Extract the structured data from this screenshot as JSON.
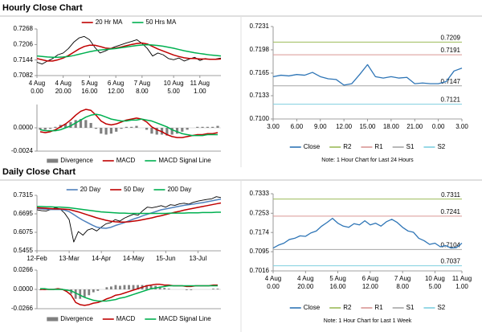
{
  "sections": [
    "Hourly Close Chart",
    "Daily Close Chart"
  ],
  "chart_data": [
    {
      "type": "line",
      "legend": "top",
      "categories": [
        "4 Aug",
        null,
        null,
        null,
        null,
        "4 Aug",
        null,
        null,
        null,
        null,
        "5 Aug",
        null,
        null,
        null,
        null,
        "6 Aug",
        null,
        null,
        null,
        null,
        "7 Aug",
        null,
        null,
        null,
        null,
        null,
        "10 Aug",
        null,
        null,
        null,
        null,
        "11 Aug",
        null,
        null,
        null,
        null
      ],
      "category_times": [
        "0.00",
        null,
        null,
        null,
        null,
        "20.00",
        null,
        null,
        null,
        null,
        "16.00",
        null,
        null,
        null,
        null,
        "12.00",
        null,
        null,
        null,
        null,
        "8.00",
        null,
        null,
        null,
        null,
        null,
        "5.00",
        null,
        null,
        null,
        null,
        "1.00",
        null,
        null,
        null,
        null
      ],
      "color": "#000000",
      "values": [
        0.7135,
        0.7128,
        0.714,
        0.715,
        0.7165,
        0.7172,
        0.719,
        0.7215,
        0.7232,
        0.7238,
        0.7225,
        0.7195,
        0.7172,
        0.718,
        0.719,
        0.7198,
        0.7205,
        0.7212,
        0.7218,
        0.7225,
        0.721,
        0.719,
        0.716,
        0.7172,
        0.7165,
        0.715,
        0.7145,
        0.7152,
        0.714,
        0.7148,
        0.7155,
        0.7142,
        0.715,
        0.7146,
        0.7148,
        0.7152
      ],
      "series": [
        {
          "name": "20 Hr MA",
          "color": "#c00000",
          "values": [
            0.715,
            0.7145,
            0.714,
            0.714,
            0.7145,
            0.7152,
            0.7162,
            0.7175,
            0.7188,
            0.7198,
            0.7203,
            0.7203,
            0.7198,
            0.7192,
            0.719,
            0.7192,
            0.7196,
            0.7201,
            0.7206,
            0.721,
            0.7212,
            0.7208,
            0.7198,
            0.7188,
            0.718,
            0.7172,
            0.7164,
            0.7158,
            0.7153,
            0.715,
            0.715,
            0.7148,
            0.7148,
            0.7147,
            0.7147,
            0.7148
          ]
        },
        {
          "name": "50 Hrs MA",
          "color": "#00b050",
          "values": [
            0.716,
            0.7158,
            0.7156,
            0.7155,
            0.7155,
            0.7156,
            0.7158,
            0.7162,
            0.7167,
            0.7172,
            0.7177,
            0.7181,
            0.7184,
            0.7186,
            0.7188,
            0.719,
            0.7193,
            0.7196,
            0.7199,
            0.7202,
            0.7204,
            0.7205,
            0.7204,
            0.7202,
            0.7199,
            0.7195,
            0.7191,
            0.7186,
            0.7181,
            0.7177,
            0.7173,
            0.717,
            0.7167,
            0.7164,
            0.7162,
            0.716
          ]
        }
      ],
      "ylim": [
        0.7082,
        0.7268
      ],
      "yticks": [
        0.7268,
        0.7206,
        0.7144,
        0.7082
      ]
    },
    {
      "type": "combo",
      "legend": "bottom",
      "series": [
        {
          "name": "Divergence",
          "mark": "bar",
          "color": "#808080",
          "values": [
            -0.0002,
            -0.0002,
            -0.0001,
            0.0001,
            0.0003,
            0.0004,
            0.0006,
            0.0008,
            0.0009,
            0.0008,
            0.0005,
            -0.0001,
            -0.0006,
            -0.0007,
            -0.0006,
            -0.0004,
            -0.0001,
            0.0001,
            0.0001,
            0.0002,
            0,
            -0.0002,
            -0.0006,
            -0.0007,
            -0.0007,
            -0.0008,
            -0.0007,
            -0.0006,
            -0.0004,
            -0.0002,
            0,
            0.0001,
            0.0001,
            0.0001,
            0.0001,
            0.0002
          ]
        },
        {
          "name": "MACD",
          "mark": "line",
          "color": "#c00000",
          "values": [
            -0.0004,
            -0.0005,
            -0.0004,
            -0.0002,
            0.0001,
            0.0004,
            0.0008,
            0.0013,
            0.0017,
            0.0019,
            0.0018,
            0.0013,
            0.0007,
            0.0004,
            0.0003,
            0.0004,
            0.0006,
            0.0008,
            0.0009,
            0.001,
            0.0009,
            0.0006,
            0.0001,
            -0.0002,
            -0.0004,
            -0.0007,
            -0.0009,
            -0.001,
            -0.001,
            -0.0009,
            -0.0008,
            -0.0007,
            -0.0007,
            -0.0006,
            -0.0006,
            -0.0005
          ]
        },
        {
          "name": "MACD Signal Line",
          "mark": "line",
          "color": "#00b050",
          "values": [
            -0.0002,
            -0.0003,
            -0.0003,
            -0.0003,
            -0.0002,
            0,
            0.0002,
            0.0005,
            0.0008,
            0.0011,
            0.0013,
            0.0014,
            0.0013,
            0.0011,
            0.0009,
            0.0008,
            0.0007,
            0.0007,
            0.0008,
            0.0008,
            0.0009,
            0.0008,
            0.0007,
            0.0005,
            0.0003,
            0.0001,
            -0.0002,
            -0.0004,
            -0.0006,
            -0.0007,
            -0.0008,
            -0.0008,
            -0.0008,
            -0.0007,
            -0.0007,
            -0.0007
          ]
        }
      ],
      "ylim": [
        -0.0024,
        0.0024
      ],
      "yticks": [
        {
          "value": 0,
          "label": "0.0000"
        },
        -0.0024
      ]
    },
    {
      "type": "line",
      "legend": "bottom",
      "categories": [
        "3.00",
        null,
        null,
        "6.00",
        null,
        null,
        "9.00",
        null,
        null,
        "12.00",
        null,
        null,
        "15.00",
        null,
        null,
        "18.00",
        null,
        null,
        "21.00",
        null,
        null,
        "0.00",
        null,
        null,
        "3.00"
      ],
      "series": [
        {
          "name": "Close",
          "color": "#2e75b6",
          "values": [
            0.716,
            0.7162,
            0.7161,
            0.7163,
            0.7162,
            0.7166,
            0.716,
            0.7157,
            0.7156,
            0.7148,
            0.715,
            0.7163,
            0.7177,
            0.716,
            0.7158,
            0.716,
            0.7158,
            0.7159,
            0.715,
            0.7151,
            0.715,
            0.715,
            0.7153,
            0.7168,
            0.7172
          ]
        }
      ],
      "levels": [
        {
          "name": "R2",
          "value": 0.7209,
          "color": "#9bbb59"
        },
        {
          "name": "R1",
          "value": 0.7191,
          "color": "#d99694"
        },
        {
          "name": "S1",
          "value": 0.7147,
          "color": "#a6a6a6"
        },
        {
          "name": "S2",
          "value": 0.7121,
          "color": "#7fcfdf"
        }
      ],
      "note": "Note: 1 Hour Chart for Last 24 Hours",
      "ylim": [
        0.71,
        0.7231
      ],
      "yticks": [
        0.7231,
        0.7198,
        0.7165,
        0.7133,
        {
          "value": 0.71,
          "label": "0.7100"
        }
      ]
    },
    {
      "type": "line",
      "legend": "top",
      "categories": [
        "12-Feb",
        null,
        null,
        null,
        null,
        null,
        null,
        "13-Mar",
        null,
        null,
        null,
        null,
        null,
        null,
        "14-Apr",
        null,
        null,
        null,
        null,
        null,
        null,
        "14-May",
        null,
        null,
        null,
        null,
        null,
        null,
        "15-Jun",
        null,
        null,
        null,
        null,
        null,
        null,
        "13-Jul",
        null,
        null,
        null,
        null,
        null
      ],
      "color": "#000000",
      "values": [
        0.683,
        0.68,
        0.679,
        0.684,
        0.69,
        0.686,
        0.672,
        0.65,
        0.575,
        0.61,
        0.598,
        0.615,
        0.62,
        0.612,
        0.625,
        0.636,
        0.64,
        0.65,
        0.645,
        0.655,
        0.662,
        0.668,
        0.665,
        0.68,
        0.692,
        0.69,
        0.693,
        0.697,
        0.692,
        0.7,
        0.698,
        0.703,
        0.705,
        0.702,
        0.708,
        0.712,
        0.715,
        0.718,
        0.72,
        0.727,
        0.724
      ],
      "series": [
        {
          "name": "20 Day",
          "color": "#4f81bd",
          "values": [
            0.688,
            0.686,
            0.685,
            0.684,
            0.684,
            0.684,
            0.682,
            0.677,
            0.667,
            0.657,
            0.648,
            0.64,
            0.632,
            0.625,
            0.622,
            0.621,
            0.624,
            0.63,
            0.635,
            0.64,
            0.646,
            0.652,
            0.657,
            0.663,
            0.668,
            0.673,
            0.678,
            0.683,
            0.686,
            0.689,
            0.692,
            0.695,
            0.698,
            0.7,
            0.702,
            0.705,
            0.707,
            0.71,
            0.713,
            0.716,
            0.719
          ]
        },
        {
          "name": "50 Day",
          "color": "#c00000",
          "values": [
            0.69,
            0.689,
            0.688,
            0.687,
            0.686,
            0.686,
            0.685,
            0.684,
            0.68,
            0.676,
            0.671,
            0.666,
            0.661,
            0.656,
            0.652,
            0.648,
            0.645,
            0.643,
            0.642,
            0.642,
            0.643,
            0.645,
            0.647,
            0.65,
            0.653,
            0.656,
            0.66,
            0.663,
            0.667,
            0.671,
            0.675,
            0.678,
            0.682,
            0.685,
            0.688,
            0.691,
            0.694,
            0.697,
            0.7,
            0.703,
            0.706
          ]
        },
        {
          "name": "200 Day",
          "color": "#00b050",
          "values": [
            0.694,
            0.694,
            0.693,
            0.693,
            0.692,
            0.692,
            0.691,
            0.69,
            0.688,
            0.686,
            0.684,
            0.682,
            0.68,
            0.678,
            0.676,
            0.675,
            0.674,
            0.673,
            0.672,
            0.672,
            0.671,
            0.671,
            0.671,
            0.671,
            0.671,
            0.671,
            0.671,
            0.671,
            0.671,
            0.672,
            0.672,
            0.672,
            0.672,
            0.673,
            0.673,
            0.673,
            0.674,
            0.674,
            0.674,
            0.675,
            0.675
          ]
        }
      ],
      "ylim": [
        0.5455,
        0.7315
      ],
      "yticks": [
        0.7315,
        0.6695,
        0.6075,
        0.5455
      ]
    },
    {
      "type": "combo",
      "legend": "bottom",
      "series": [
        {
          "name": "Divergence",
          "mark": "bar",
          "color": "#808080",
          "values": [
            -0.001,
            -0.001,
            0,
            0,
            0.001,
            0,
            -0.002,
            -0.006,
            -0.013,
            -0.013,
            -0.011,
            -0.008,
            -0.004,
            -0.002,
            0,
            0.003,
            0.004,
            0.006,
            0.005,
            0.006,
            0.006,
            0.006,
            0.006,
            0.006,
            0.006,
            0.005,
            0.005,
            0.004,
            0.002,
            0.001,
            0,
            0,
            0,
            -0.001,
            -0.001,
            0,
            0,
            0,
            0,
            0.001,
            0.001
          ]
        },
        {
          "name": "MACD",
          "mark": "line",
          "color": "#c00000",
          "values": [
            0,
            0,
            0,
            0,
            0.001,
            0,
            -0.003,
            -0.008,
            -0.018,
            -0.021,
            -0.022,
            -0.021,
            -0.019,
            -0.018,
            -0.016,
            -0.013,
            -0.011,
            -0.008,
            -0.007,
            -0.005,
            -0.003,
            -0.001,
            0.001,
            0.003,
            0.005,
            0.006,
            0.007,
            0.007,
            0.006,
            0.006,
            0.005,
            0.005,
            0.005,
            0.004,
            0.004,
            0.005,
            0.005,
            0.005,
            0.005,
            0.006,
            0.006
          ]
        },
        {
          "name": "MACD Signal Line",
          "mark": "line",
          "color": "#00b050",
          "values": [
            0.001,
            0.001,
            0,
            0,
            0,
            0,
            -0.001,
            -0.002,
            -0.005,
            -0.008,
            -0.011,
            -0.013,
            -0.015,
            -0.016,
            -0.016,
            -0.016,
            -0.015,
            -0.014,
            -0.012,
            -0.011,
            -0.009,
            -0.007,
            -0.005,
            -0.003,
            -0.001,
            0.001,
            0.002,
            0.003,
            0.004,
            0.005,
            0.005,
            0.005,
            0.005,
            0.005,
            0.005,
            0.005,
            0.005,
            0.005,
            0.005,
            0.005,
            0.005
          ]
        }
      ],
      "ylim": [
        -0.0266,
        0.0266
      ],
      "yticks": [
        0.0266,
        {
          "value": 0,
          "label": "0.0000"
        },
        -0.0266
      ]
    },
    {
      "type": "line",
      "legend": "bottom",
      "categories": [
        "4 Aug",
        null,
        null,
        null,
        null,
        null,
        "4 Aug",
        null,
        null,
        null,
        null,
        null,
        "5 Aug",
        null,
        null,
        null,
        null,
        null,
        "6 Aug",
        null,
        null,
        null,
        null,
        null,
        "7 Aug",
        null,
        null,
        null,
        null,
        null,
        "10 Aug",
        null,
        null,
        null,
        null,
        "11 Aug"
      ],
      "category_times": [
        "0.00",
        null,
        null,
        null,
        null,
        null,
        "20.00",
        null,
        null,
        null,
        null,
        null,
        "16.00",
        null,
        null,
        null,
        null,
        null,
        "12.00",
        null,
        null,
        null,
        null,
        null,
        "8.00",
        null,
        null,
        null,
        null,
        null,
        "5.00",
        null,
        null,
        null,
        null,
        "1.00"
      ],
      "series": [
        {
          "name": "Close",
          "color": "#2e75b6",
          "values": [
            0.711,
            0.7122,
            0.713,
            0.7145,
            0.715,
            0.716,
            0.7158,
            0.7172,
            0.718,
            0.72,
            0.7215,
            0.7232,
            0.7212,
            0.72,
            0.7195,
            0.721,
            0.7205,
            0.7222,
            0.7205,
            0.7212,
            0.72,
            0.7218,
            0.7228,
            0.7215,
            0.7195,
            0.718,
            0.7175,
            0.715,
            0.714,
            0.7125,
            0.713,
            0.7115,
            0.712,
            0.711,
            0.7112,
            0.713
          ]
        }
      ],
      "levels": [
        {
          "name": "R2",
          "value": 0.7311,
          "color": "#9bbb59"
        },
        {
          "name": "R1",
          "value": 0.7241,
          "color": "#d99694"
        },
        {
          "name": "S1",
          "value": 0.7104,
          "color": "#a6a6a6"
        },
        {
          "name": "S2",
          "value": 0.7037,
          "color": "#7fcfdf"
        }
      ],
      "note": "Note: 1 Hour Chart for Last 1 Week",
      "ylim": [
        0.7016,
        0.7333
      ],
      "yticks": [
        0.7333,
        0.7253,
        0.7174,
        0.7095,
        0.7016
      ]
    }
  ]
}
